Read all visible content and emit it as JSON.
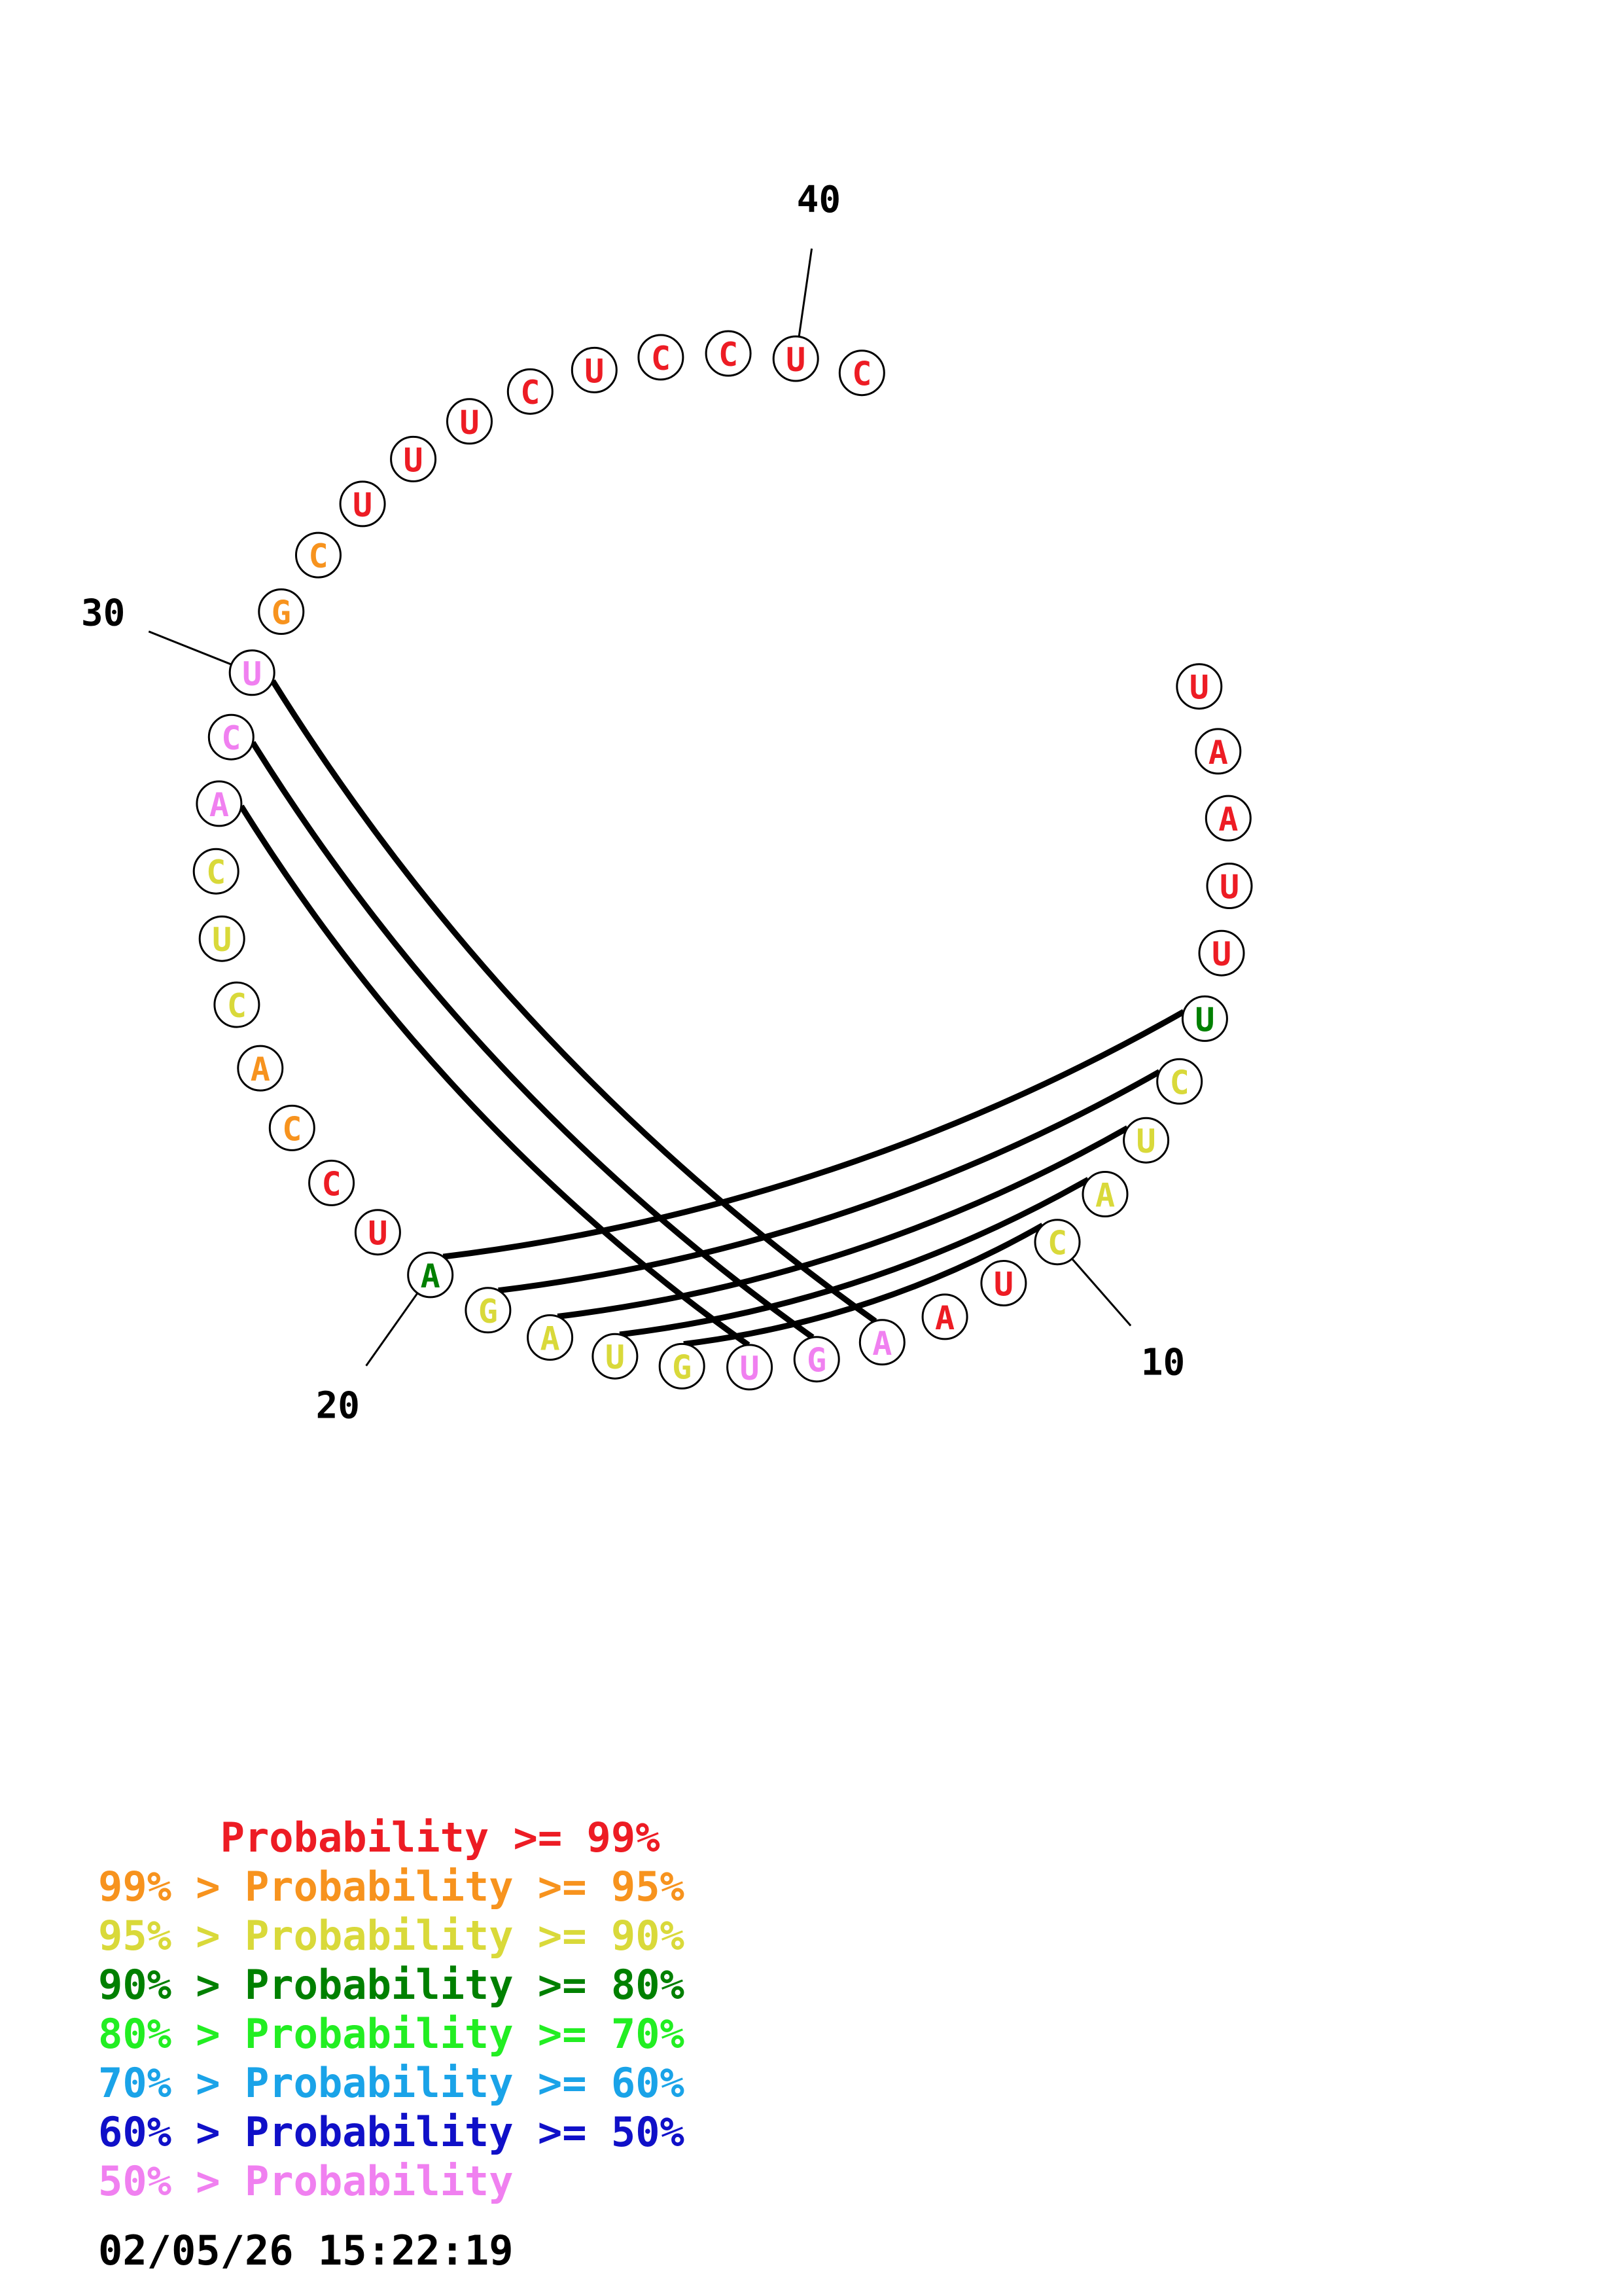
{
  "sequence": [
    "U",
    "A",
    "A",
    "U",
    "U",
    "U",
    "C",
    "U",
    "A",
    "C",
    "U",
    "A",
    "A",
    "G",
    "U",
    "G",
    "U",
    "A",
    "G",
    "A",
    "U",
    "C",
    "C",
    "A",
    "C",
    "U",
    "C",
    "A",
    "C",
    "U",
    "G",
    "C",
    "U",
    "U",
    "U",
    "C",
    "U",
    "C",
    "C",
    "U",
    "C"
  ],
  "nucleotide_probability_class": [
    0,
    0,
    0,
    0,
    0,
    3,
    2,
    2,
    2,
    2,
    0,
    0,
    7,
    7,
    7,
    2,
    2,
    2,
    2,
    3,
    0,
    0,
    1,
    1,
    2,
    2,
    2,
    7,
    7,
    7,
    1,
    1,
    0,
    0,
    0,
    0,
    0,
    0,
    0,
    0,
    0
  ],
  "index_labels": [
    10,
    20,
    30,
    40
  ],
  "base_pairs": [
    [
      6,
      20
    ],
    [
      7,
      19
    ],
    [
      8,
      18
    ],
    [
      9,
      17
    ],
    [
      10,
      16
    ],
    [
      13,
      30
    ],
    [
      14,
      29
    ],
    [
      15,
      28
    ]
  ],
  "colors": {
    "class_0": "#ed1c24",
    "class_1": "#f7931e",
    "class_2": "#d9d93a",
    "class_3": "#008000",
    "class_4": "#22ee22",
    "class_5": "#1aa3e8",
    "class_6": "#1010c8",
    "class_7": "#f080f0"
  },
  "legend": [
    {
      "text": "     Probability >= 99%",
      "color": "#ed1c24"
    },
    {
      "text": "99% > Probability >= 95%",
      "color": "#f7931e"
    },
    {
      "text": "95% > Probability >= 90%",
      "color": "#d9d93a"
    },
    {
      "text": "90% > Probability >= 80%",
      "color": "#008000"
    },
    {
      "text": "80% > Probability >= 70%",
      "color": "#22ee22"
    },
    {
      "text": "70% > Probability >= 60%",
      "color": "#1aa3e8"
    },
    {
      "text": "60% > Probability >= 50%",
      "color": "#1010c8"
    },
    {
      "text": "50% > Probability",
      "color": "#f080f0"
    }
  ],
  "timestamp": "02/05/26 15:22:19"
}
